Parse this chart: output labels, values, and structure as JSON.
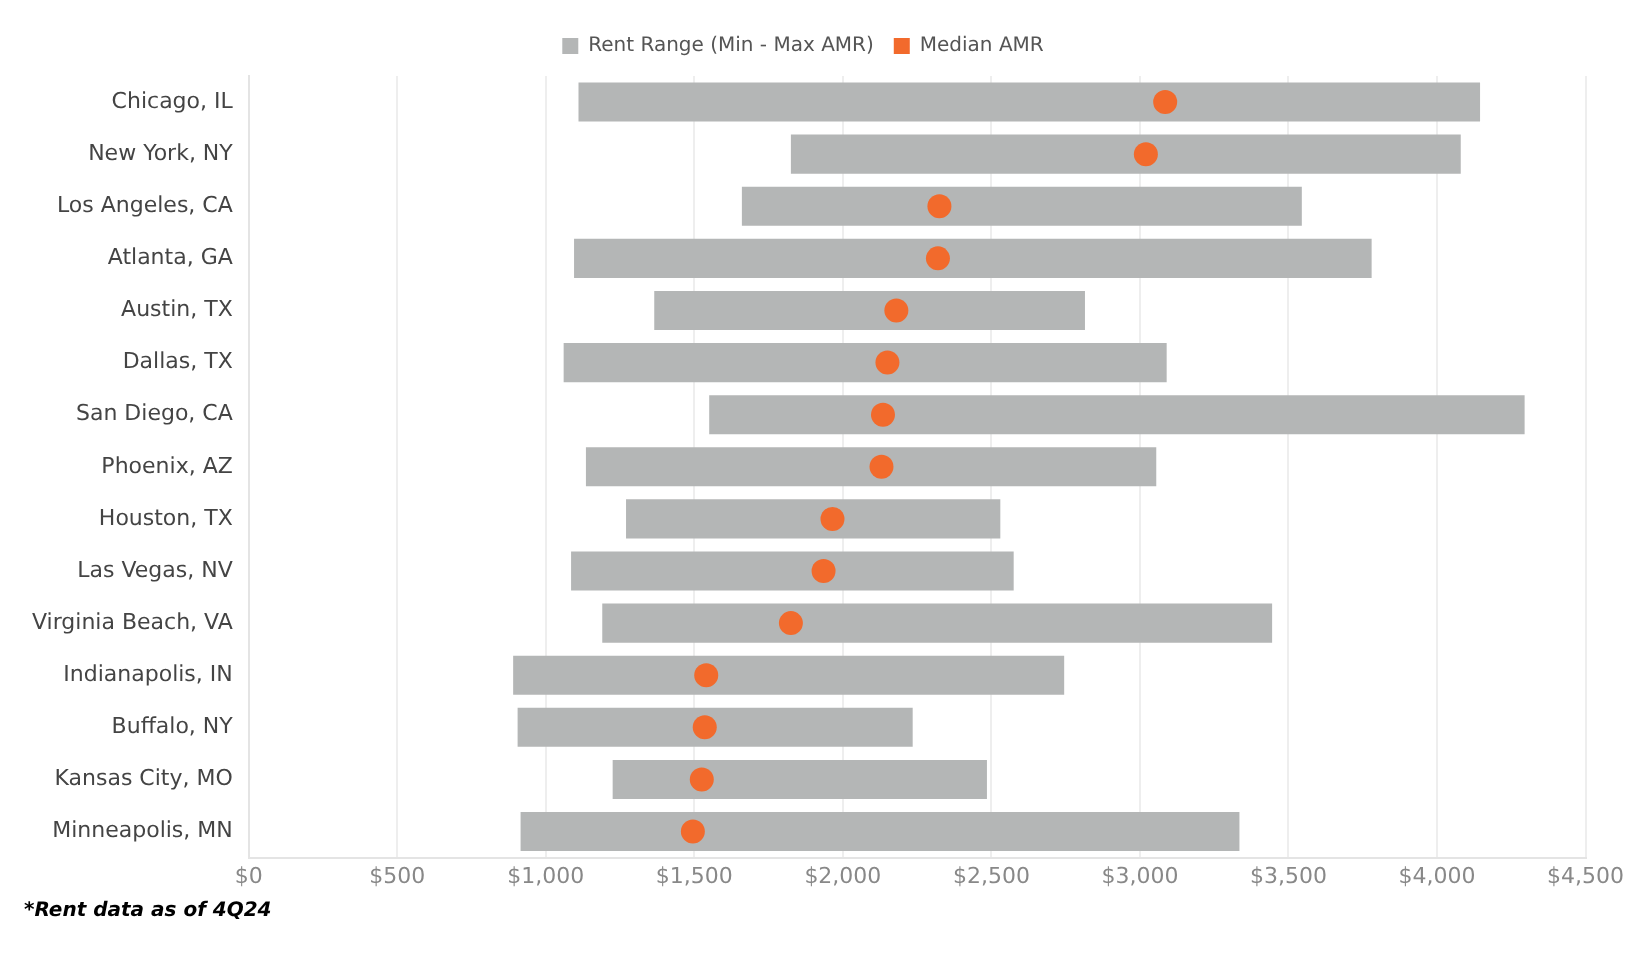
{
  "chart_data": {
    "type": "bar",
    "orientation": "horizontal",
    "categories": [
      "Chicago, IL",
      "New York, NY",
      "Los Angeles, CA",
      "Atlanta, GA",
      "Austin, TX",
      "Dallas, TX",
      "San Diego, CA",
      "Phoenix, AZ",
      "Houston, TX",
      "Las Vegas, NV",
      "Virginia Beach, VA",
      "Indianapolis, IN",
      "Buffalo, NY",
      "Kansas City, MO",
      "Minneapolis, MN"
    ],
    "series": [
      {
        "name": "Rent Range (Min - Max AMR)",
        "color": "#b4b6b6",
        "base": [
          1110,
          1825,
          1660,
          1095,
          1365,
          1060,
          1550,
          1135,
          1270,
          1085,
          1190,
          890,
          905,
          1225,
          915
        ],
        "values": [
          3035,
          2255,
          1885,
          2685,
          1450,
          2030,
          2745,
          1920,
          1260,
          1490,
          2255,
          1855,
          1330,
          1260,
          2420
        ]
      },
      {
        "name": "Median AMR",
        "type": "scatter",
        "color": "#f26a2c",
        "values": [
          3085,
          3020,
          2325,
          2320,
          2180,
          2150,
          2135,
          2130,
          1965,
          1935,
          1825,
          1540,
          1535,
          1525,
          1495
        ]
      }
    ],
    "xlim": [
      0,
      4500
    ],
    "xticks": [
      {
        "value": 0,
        "label": "$0"
      },
      {
        "value": 500,
        "label": "$500"
      },
      {
        "value": 1000,
        "label": "$1,000"
      },
      {
        "value": 1500,
        "label": "$1,500"
      },
      {
        "value": 2000,
        "label": "$2,000"
      },
      {
        "value": 2500,
        "label": "$2,500"
      },
      {
        "value": 3000,
        "label": "$3,000"
      },
      {
        "value": 3500,
        "label": "$3,500"
      },
      {
        "value": 4000,
        "label": "$4,000"
      },
      {
        "value": 4500,
        "label": "$4,500"
      }
    ],
    "grid": "x",
    "legend": "top",
    "marker": "circle",
    "annotations": [
      "*Rent data as of 4Q24"
    ]
  }
}
